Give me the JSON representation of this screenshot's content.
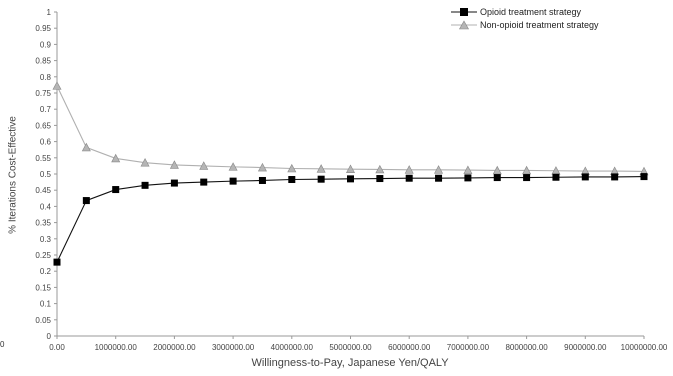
{
  "chart_data": {
    "type": "line",
    "title": "",
    "xlabel": "Willingness-to-Pay, Japanese Yen/QALY",
    "ylabel": "% Iterations Cost-Effective",
    "xlim": [
      0,
      10000000
    ],
    "ylim": [
      0,
      1
    ],
    "x_ticks": [
      0,
      1000000,
      2000000,
      3000000,
      4000000,
      5000000,
      6000000,
      7000000,
      8000000,
      9000000,
      10000000
    ],
    "x_tick_labels": [
      "0.00",
      "1000000.00",
      "2000000.00",
      "3000000.00",
      "4000000.00",
      "5000000.00",
      "6000000.00",
      "7000000.00",
      "8000000.00",
      "9000000.00",
      "10000000.00"
    ],
    "y_ticks": [
      0,
      0.05,
      0.1,
      0.15,
      0.2,
      0.25,
      0.3,
      0.35,
      0.4,
      0.45,
      0.5,
      0.55,
      0.6,
      0.65,
      0.7,
      0.75,
      0.8,
      0.85,
      0.9,
      0.95,
      1
    ],
    "y_tick_labels": [
      "0",
      "0.05",
      "0.1",
      "0.15",
      "0.2",
      "0.25",
      "0.3",
      "0.35",
      "0.4",
      "0.45",
      "0.5",
      "0.55",
      "0.6",
      "0.65",
      "0.7",
      "0.75",
      "0.8",
      "0.85",
      "0.9",
      "0.95",
      "1"
    ],
    "grid": false,
    "legend_position": "top-right",
    "corner_label": "0",
    "x": [
      0,
      500000,
      1000000,
      1500000,
      2000000,
      2500000,
      3000000,
      3500000,
      4000000,
      4500000,
      5000000,
      5500000,
      6000000,
      6500000,
      7000000,
      7500000,
      8000000,
      8500000,
      9000000,
      9500000,
      10000000
    ],
    "series": [
      {
        "name": "Opioid treatment strategy",
        "marker": "square",
        "color": "#000000",
        "line_color": "#111111",
        "values": [
          0.228,
          0.418,
          0.452,
          0.465,
          0.472,
          0.475,
          0.478,
          0.48,
          0.483,
          0.484,
          0.485,
          0.486,
          0.487,
          0.487,
          0.488,
          0.489,
          0.489,
          0.49,
          0.491,
          0.491,
          0.492
        ]
      },
      {
        "name": "Non-opioid treatment strategy",
        "marker": "triangle",
        "color": "#b5b5b5",
        "line_color": "#b0b0b0",
        "values": [
          0.772,
          0.582,
          0.548,
          0.535,
          0.528,
          0.525,
          0.522,
          0.52,
          0.517,
          0.516,
          0.515,
          0.514,
          0.513,
          0.513,
          0.512,
          0.511,
          0.511,
          0.51,
          0.509,
          0.509,
          0.508
        ]
      }
    ]
  }
}
